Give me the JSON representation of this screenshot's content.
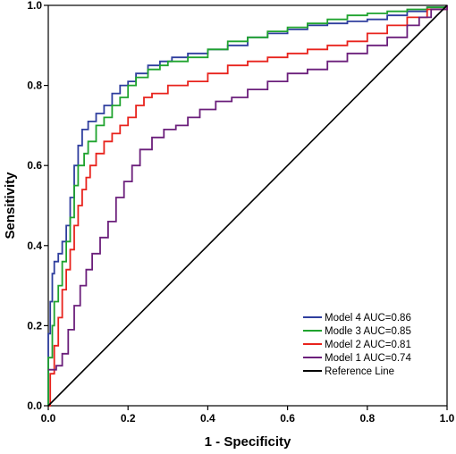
{
  "chart_data": {
    "type": "line",
    "title": "",
    "xlabel": "1 - Specificity",
    "ylabel": "Sensitivity",
    "xlim": [
      0,
      1
    ],
    "ylim": [
      0,
      1
    ],
    "xticks": [
      "0.0",
      "0.2",
      "0.4",
      "0.6",
      "0.8",
      "1.0"
    ],
    "yticks": [
      "0.0",
      "0.2",
      "0.4",
      "0.6",
      "0.8",
      "1.0"
    ],
    "grid": false,
    "legend_position": "bottom-right",
    "series": [
      {
        "name": "Model 4 AUC=0.86",
        "color": "#2f3e9e",
        "points": [
          [
            0,
            0
          ],
          [
            0,
            0.18
          ],
          [
            0.005,
            0.26
          ],
          [
            0.01,
            0.33
          ],
          [
            0.015,
            0.36
          ],
          [
            0.025,
            0.38
          ],
          [
            0.035,
            0.41
          ],
          [
            0.045,
            0.45
          ],
          [
            0.055,
            0.52
          ],
          [
            0.065,
            0.6
          ],
          [
            0.075,
            0.65
          ],
          [
            0.085,
            0.69
          ],
          [
            0.1,
            0.71
          ],
          [
            0.12,
            0.73
          ],
          [
            0.14,
            0.75
          ],
          [
            0.16,
            0.78
          ],
          [
            0.18,
            0.8
          ],
          [
            0.2,
            0.81
          ],
          [
            0.22,
            0.83
          ],
          [
            0.25,
            0.85
          ],
          [
            0.28,
            0.86
          ],
          [
            0.31,
            0.87
          ],
          [
            0.35,
            0.88
          ],
          [
            0.4,
            0.89
          ],
          [
            0.45,
            0.9
          ],
          [
            0.5,
            0.92
          ],
          [
            0.55,
            0.93
          ],
          [
            0.6,
            0.94
          ],
          [
            0.65,
            0.95
          ],
          [
            0.7,
            0.955
          ],
          [
            0.75,
            0.96
          ],
          [
            0.8,
            0.965
          ],
          [
            0.85,
            0.975
          ],
          [
            0.9,
            0.985
          ],
          [
            0.95,
            0.995
          ],
          [
            1,
            1
          ]
        ]
      },
      {
        "name": "Modle 3 AUC=0.85",
        "color": "#1fa32e",
        "points": [
          [
            0,
            0
          ],
          [
            0,
            0.12
          ],
          [
            0.01,
            0.2
          ],
          [
            0.015,
            0.26
          ],
          [
            0.025,
            0.3
          ],
          [
            0.035,
            0.36
          ],
          [
            0.045,
            0.41
          ],
          [
            0.055,
            0.47
          ],
          [
            0.065,
            0.55
          ],
          [
            0.075,
            0.6
          ],
          [
            0.09,
            0.63
          ],
          [
            0.1,
            0.66
          ],
          [
            0.12,
            0.7
          ],
          [
            0.14,
            0.72
          ],
          [
            0.16,
            0.75
          ],
          [
            0.18,
            0.77
          ],
          [
            0.2,
            0.8
          ],
          [
            0.22,
            0.82
          ],
          [
            0.25,
            0.84
          ],
          [
            0.28,
            0.85
          ],
          [
            0.3,
            0.86
          ],
          [
            0.35,
            0.87
          ],
          [
            0.4,
            0.89
          ],
          [
            0.45,
            0.91
          ],
          [
            0.5,
            0.92
          ],
          [
            0.55,
            0.935
          ],
          [
            0.6,
            0.945
          ],
          [
            0.65,
            0.955
          ],
          [
            0.7,
            0.965
          ],
          [
            0.75,
            0.975
          ],
          [
            0.8,
            0.98
          ],
          [
            0.85,
            0.985
          ],
          [
            0.9,
            0.99
          ],
          [
            0.95,
            0.995
          ],
          [
            1,
            1
          ]
        ]
      },
      {
        "name": "Model 2 AUC=0.81",
        "color": "#e8231d",
        "points": [
          [
            0,
            0
          ],
          [
            0.005,
            0.08
          ],
          [
            0.015,
            0.15
          ],
          [
            0.025,
            0.22
          ],
          [
            0.035,
            0.29
          ],
          [
            0.045,
            0.34
          ],
          [
            0.055,
            0.39
          ],
          [
            0.065,
            0.45
          ],
          [
            0.075,
            0.5
          ],
          [
            0.085,
            0.54
          ],
          [
            0.095,
            0.57
          ],
          [
            0.105,
            0.6
          ],
          [
            0.12,
            0.63
          ],
          [
            0.14,
            0.66
          ],
          [
            0.16,
            0.68
          ],
          [
            0.18,
            0.7
          ],
          [
            0.2,
            0.72
          ],
          [
            0.22,
            0.75
          ],
          [
            0.24,
            0.77
          ],
          [
            0.26,
            0.78
          ],
          [
            0.3,
            0.8
          ],
          [
            0.35,
            0.81
          ],
          [
            0.4,
            0.83
          ],
          [
            0.45,
            0.85
          ],
          [
            0.5,
            0.86
          ],
          [
            0.55,
            0.87
          ],
          [
            0.6,
            0.88
          ],
          [
            0.65,
            0.89
          ],
          [
            0.7,
            0.9
          ],
          [
            0.75,
            0.91
          ],
          [
            0.8,
            0.93
          ],
          [
            0.85,
            0.95
          ],
          [
            0.9,
            0.97
          ],
          [
            0.95,
            0.99
          ],
          [
            1,
            1
          ]
        ]
      },
      {
        "name": "Model 1 AUC=0.74",
        "color": "#6b1f7b",
        "points": [
          [
            0,
            0.09
          ],
          [
            0.02,
            0.1
          ],
          [
            0.035,
            0.13
          ],
          [
            0.05,
            0.19
          ],
          [
            0.065,
            0.25
          ],
          [
            0.08,
            0.3
          ],
          [
            0.095,
            0.34
          ],
          [
            0.11,
            0.38
          ],
          [
            0.13,
            0.42
          ],
          [
            0.15,
            0.46
          ],
          [
            0.17,
            0.52
          ],
          [
            0.19,
            0.56
          ],
          [
            0.21,
            0.6
          ],
          [
            0.23,
            0.64
          ],
          [
            0.26,
            0.67
          ],
          [
            0.29,
            0.69
          ],
          [
            0.32,
            0.7
          ],
          [
            0.35,
            0.72
          ],
          [
            0.38,
            0.74
          ],
          [
            0.42,
            0.76
          ],
          [
            0.46,
            0.77
          ],
          [
            0.5,
            0.79
          ],
          [
            0.55,
            0.81
          ],
          [
            0.6,
            0.83
          ],
          [
            0.65,
            0.84
          ],
          [
            0.7,
            0.86
          ],
          [
            0.75,
            0.88
          ],
          [
            0.8,
            0.9
          ],
          [
            0.85,
            0.92
          ],
          [
            0.9,
            0.95
          ],
          [
            0.93,
            0.97
          ],
          [
            0.96,
            0.99
          ],
          [
            1,
            1
          ]
        ]
      },
      {
        "name": "Reference Line",
        "color": "#000000",
        "points": [
          [
            0,
            0
          ],
          [
            1,
            1
          ]
        ]
      }
    ]
  }
}
